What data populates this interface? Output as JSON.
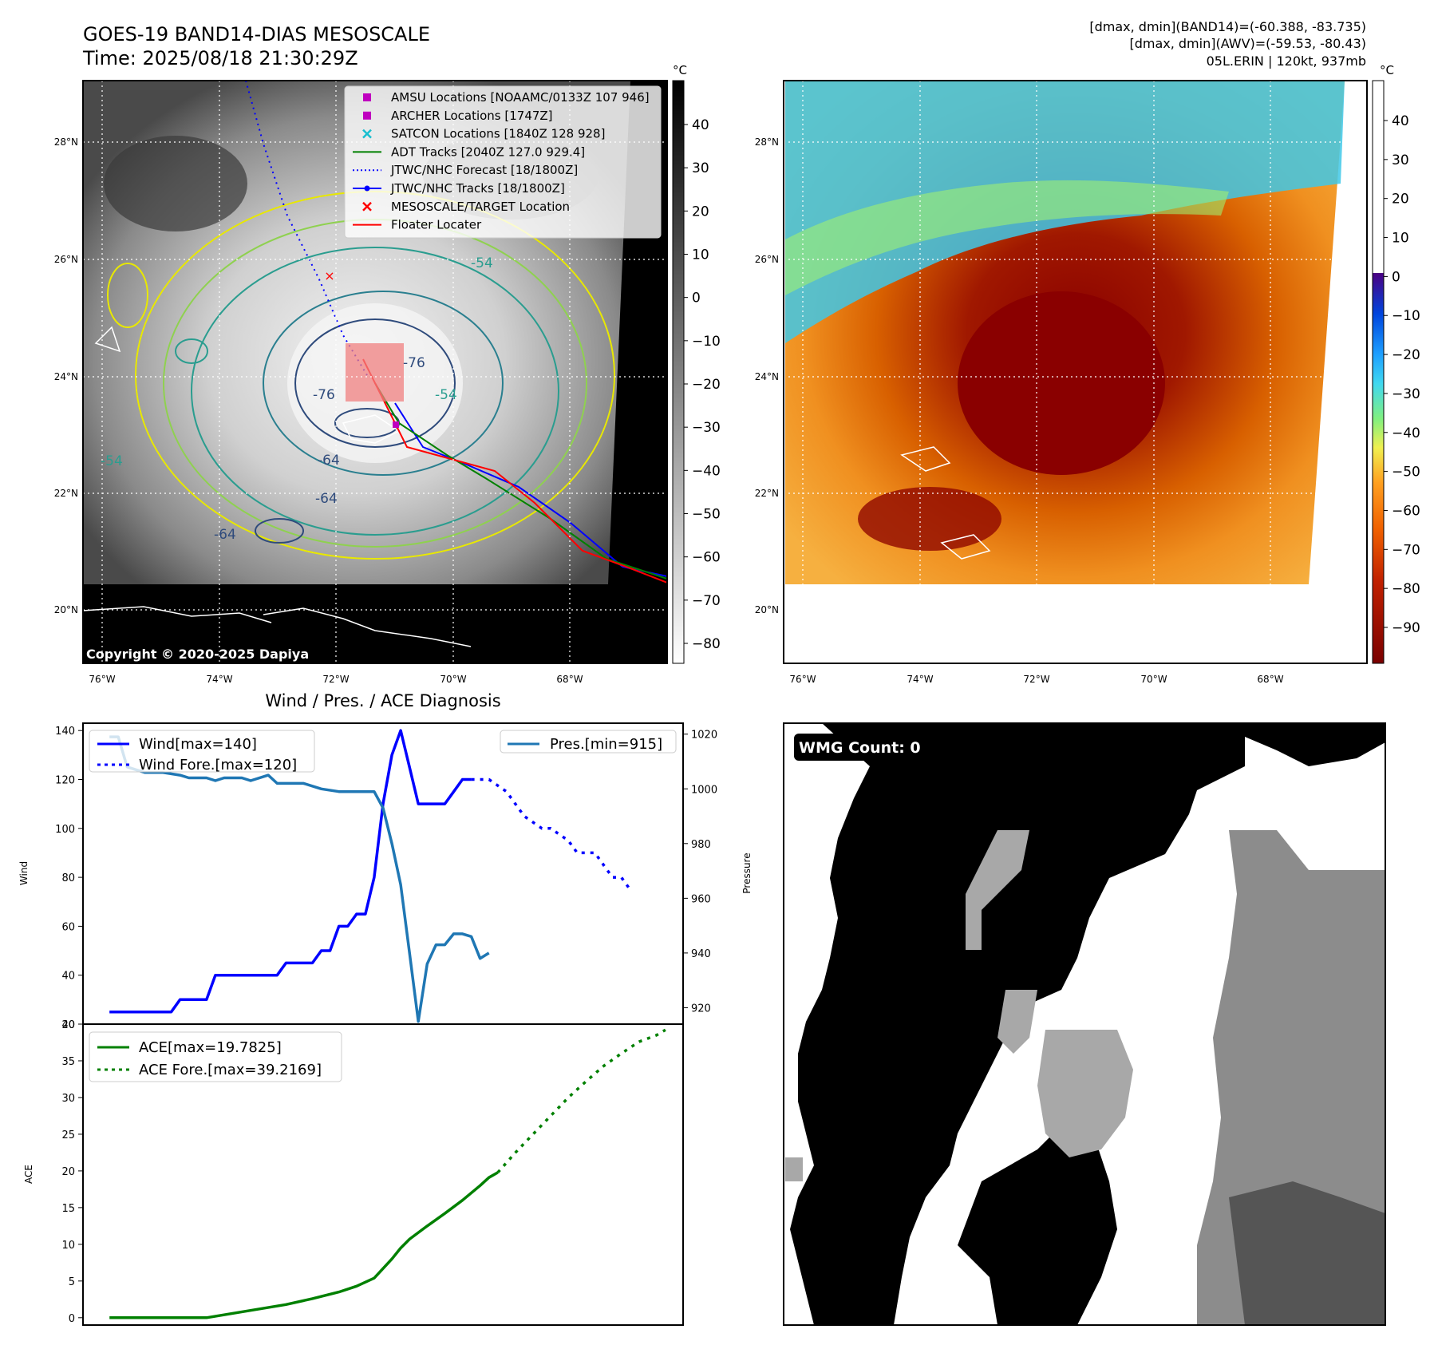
{
  "header": {
    "title_line1": "GOES-19 BAND14-DIAS MESOSCALE",
    "title_line2": "Time: 2025/08/18 21:30:29Z",
    "info_line1": "[dmax, dmin](BAND14)=(-60.388, -83.735)",
    "info_line2": "[dmax, dmin](AWV)=(-59.53, -80.43)",
    "info_line3": "05L.ERIN | 120kt, 937mb"
  },
  "copyright": "Copyright © 2020-2025 Dapiya",
  "map": {
    "lon_ticks": [
      "76°W",
      "74°W",
      "72°W",
      "70°W",
      "68°W"
    ],
    "lat_ticks": [
      "28°N",
      "26°N",
      "24°N",
      "22°N",
      "20°N"
    ],
    "contour_labels": [
      "-76",
      "-76",
      "-64",
      "-64",
      "-64",
      "-54",
      "-54",
      "-54"
    ],
    "legend": [
      {
        "label": "AMSU Locations [NOAAMC/0133Z 107 946]",
        "color": "#bf00bf",
        "kind": "square"
      },
      {
        "label": "ARCHER Locations [1747Z]",
        "color": "#bf00bf",
        "kind": "square"
      },
      {
        "label": "SATCON Locations [1840Z 128 928]",
        "color": "#17becf",
        "kind": "x"
      },
      {
        "label": "ADT Tracks [2040Z 127.0 929.4]",
        "color": "#008000",
        "kind": "line"
      },
      {
        "label": "JTWC/NHC Forecast [18/1800Z]",
        "color": "#0000ff",
        "kind": "dotted"
      },
      {
        "label": "JTWC/NHC Tracks [18/1800Z]",
        "color": "#0000ff",
        "kind": "line-dot"
      },
      {
        "label": "MESOSCALE/TARGET Location",
        "color": "#ff0000",
        "kind": "x"
      },
      {
        "label": "Floater Locater",
        "color": "#ff0000",
        "kind": "line"
      }
    ]
  },
  "colorbar_left": {
    "unit": "°C",
    "ticks": [
      "40",
      "30",
      "20",
      "10",
      "0",
      "−10",
      "−20",
      "−30",
      "−40",
      "−50",
      "−60",
      "−70",
      "−80"
    ]
  },
  "colorbar_right": {
    "unit": "°C",
    "ticks": [
      "40",
      "30",
      "20",
      "10",
      "0",
      "−10",
      "−20",
      "−30",
      "−40",
      "−50",
      "−60",
      "−70",
      "−80",
      "−90"
    ]
  },
  "wmg": {
    "label": "WMG Count: 0"
  },
  "chart_data": [
    {
      "type": "line",
      "title": "Wind / Pres. / ACE Diagnosis",
      "ylabel": "Wind",
      "ylabel_right": "Pressure",
      "ylim": [
        20,
        143
      ],
      "ylim_right": [
        914,
        1024
      ],
      "yticks": [
        20,
        40,
        60,
        80,
        100,
        120,
        140
      ],
      "yticks_right": [
        920,
        940,
        960,
        980,
        1000,
        1020
      ],
      "legend": [
        "Wind[max=140]",
        "Wind Fore.[max=120]"
      ],
      "legend_right": [
        "Pres.[min=915]"
      ],
      "x": [
        0,
        1,
        2,
        3,
        4,
        5,
        6,
        7,
        8,
        9,
        10,
        11,
        12,
        13,
        14,
        15,
        16,
        17,
        18,
        19,
        20,
        21,
        22,
        23,
        24,
        25,
        26,
        27,
        28,
        29,
        30,
        31,
        32,
        33,
        34,
        35,
        36,
        37,
        38,
        39,
        40,
        41,
        42,
        43,
        44,
        45,
        46,
        47,
        48,
        49,
        50,
        51,
        52,
        53,
        54,
        55,
        56,
        57,
        58,
        59,
        60
      ],
      "series": [
        {
          "name": "Wind[max=140]",
          "color": "#0000ff",
          "style": "solid",
          "points": [
            [
              0,
              25
            ],
            [
              7,
              25
            ],
            [
              8,
              30
            ],
            [
              11,
              30
            ],
            [
              12,
              40
            ],
            [
              19,
              40
            ],
            [
              20,
              45
            ],
            [
              23,
              45
            ],
            [
              24,
              50
            ],
            [
              25,
              50
            ],
            [
              26,
              60
            ],
            [
              27,
              60
            ],
            [
              28,
              65
            ],
            [
              29,
              65
            ],
            [
              30,
              80
            ],
            [
              31,
              110
            ],
            [
              32,
              130
            ],
            [
              33,
              140
            ],
            [
              34,
              125
            ],
            [
              35,
              110
            ],
            [
              38,
              110
            ],
            [
              39,
              115
            ],
            [
              40,
              120
            ],
            [
              41,
              120
            ]
          ]
        },
        {
          "name": "Wind Fore.[max=120]",
          "color": "#0000ff",
          "style": "dotted",
          "points": [
            [
              41,
              120
            ],
            [
              43,
              120
            ],
            [
              45,
              115
            ],
            [
              47,
              105
            ],
            [
              49,
              100
            ],
            [
              50,
              100
            ],
            [
              52,
              95
            ],
            [
              53,
              90
            ],
            [
              55,
              90
            ],
            [
              57,
              80
            ],
            [
              58,
              80
            ],
            [
              59,
              75
            ]
          ]
        },
        {
          "name": "Pres.[min=915]",
          "color": "#1f77b4",
          "style": "solid",
          "axis": "right",
          "points": [
            [
              0,
              1019
            ],
            [
              1,
              1019
            ],
            [
              2,
              1008
            ],
            [
              3,
              1007
            ],
            [
              4,
              1006
            ],
            [
              6,
              1006
            ],
            [
              8,
              1005
            ],
            [
              9,
              1004
            ],
            [
              11,
              1004
            ],
            [
              12,
              1003
            ],
            [
              13,
              1004
            ],
            [
              15,
              1004
            ],
            [
              16,
              1003
            ],
            [
              18,
              1005
            ],
            [
              19,
              1002
            ],
            [
              22,
              1002
            ],
            [
              24,
              1000
            ],
            [
              26,
              999
            ],
            [
              28,
              999
            ],
            [
              30,
              999
            ],
            [
              31,
              993
            ],
            [
              32,
              980
            ],
            [
              33,
              965
            ],
            [
              34,
              940
            ],
            [
              35,
              915
            ],
            [
              36,
              936
            ],
            [
              37,
              943
            ],
            [
              38,
              943
            ],
            [
              39,
              947
            ],
            [
              40,
              947
            ],
            [
              41,
              946
            ],
            [
              42,
              938
            ],
            [
              43,
              940
            ]
          ]
        }
      ]
    },
    {
      "type": "line",
      "ylabel": "ACE",
      "ylim": [
        -1,
        40
      ],
      "yticks": [
        0,
        5,
        10,
        15,
        20,
        25,
        30,
        35,
        40
      ],
      "legend": [
        "ACE[max=19.7825]",
        "ACE Fore.[max=39.2169]"
      ],
      "series": [
        {
          "name": "ACE[max=19.7825]",
          "color": "#008000",
          "style": "solid",
          "points": [
            [
              0,
              0
            ],
            [
              11,
              0
            ],
            [
              14,
              0.6
            ],
            [
              17,
              1.2
            ],
            [
              20,
              1.8
            ],
            [
              23,
              2.6
            ],
            [
              26,
              3.5
            ],
            [
              28,
              4.3
            ],
            [
              30,
              5.4
            ],
            [
              32,
              8
            ],
            [
              33,
              9.5
            ],
            [
              34,
              10.7
            ],
            [
              36,
              12.5
            ],
            [
              38,
              14.2
            ],
            [
              40,
              16
            ],
            [
              42,
              18
            ],
            [
              43,
              19.1
            ],
            [
              44,
              19.78
            ]
          ]
        },
        {
          "name": "ACE Fore.[max=39.2169]",
          "color": "#008000",
          "style": "dotted",
          "points": [
            [
              44,
              19.78
            ],
            [
              46,
              22.5
            ],
            [
              48,
              25
            ],
            [
              50,
              27.5
            ],
            [
              52,
              30
            ],
            [
              54,
              32.2
            ],
            [
              56,
              34.3
            ],
            [
              58,
              36
            ],
            [
              60,
              37.6
            ],
            [
              62,
              38.5
            ],
            [
              63,
              39.22
            ]
          ]
        }
      ]
    }
  ]
}
